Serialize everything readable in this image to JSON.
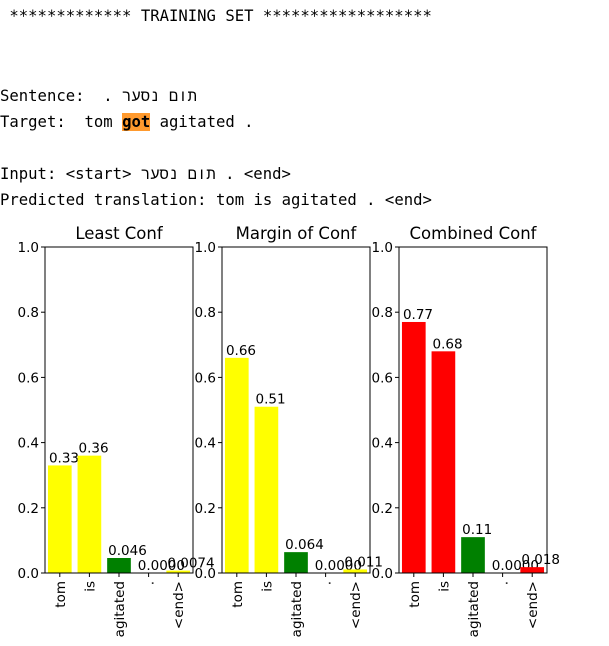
{
  "header": {
    "banner": " ************* TRAINING SET ******************"
  },
  "sentence": {
    "label": "Sentence:",
    "text": "תום נסער ."
  },
  "target": {
    "label": "Target:",
    "before": "tom",
    "highlight": "got",
    "after": "agitated ."
  },
  "input": {
    "label": "Input:",
    "start": "<start>",
    "text": "תום נסער",
    "rest": ". <end>"
  },
  "prediction": {
    "label": "Predicted translation:",
    "text": "tom is agitated . <end>"
  },
  "chart_data": [
    {
      "type": "bar",
      "title": "Least Conf",
      "categories": [
        "tom",
        "is",
        "agitated",
        ".",
        "<end>"
      ],
      "values": [
        0.33,
        0.36,
        0.046,
        0.0,
        0.0074
      ],
      "value_labels": [
        "0.33",
        "0.36",
        "0.046",
        "0.0000",
        "0.0074"
      ],
      "colors": [
        "#ffff00",
        "#ffff00",
        "#008000",
        "#ffff00",
        "#ffff00"
      ],
      "ylim": [
        0,
        1.0
      ],
      "yticks": [
        "0.0",
        "0.2",
        "0.4",
        "0.6",
        "0.8",
        "1.0"
      ]
    },
    {
      "type": "bar",
      "title": "Margin of Conf",
      "categories": [
        "tom",
        "is",
        "agitated",
        ".",
        "<end>"
      ],
      "values": [
        0.66,
        0.51,
        0.064,
        0.0,
        0.011
      ],
      "value_labels": [
        "0.66",
        "0.51",
        "0.064",
        "0.0000",
        "0.011"
      ],
      "colors": [
        "#ffff00",
        "#ffff00",
        "#008000",
        "#ffff00",
        "#ffff00"
      ],
      "ylim": [
        0,
        1.0
      ],
      "yticks": [
        "0.0",
        "0.2",
        "0.4",
        "0.6",
        "0.8",
        "1.0"
      ]
    },
    {
      "type": "bar",
      "title": "Combined Conf",
      "categories": [
        "tom",
        "is",
        "agitated",
        ".",
        "<end>"
      ],
      "values": [
        0.77,
        0.68,
        0.11,
        0.0,
        0.018
      ],
      "value_labels": [
        "0.77",
        "0.68",
        "0.11",
        "0.0000",
        "0.018"
      ],
      "colors": [
        "#ff0000",
        "#ff0000",
        "#008000",
        "#ff0000",
        "#ff0000"
      ],
      "ylim": [
        0,
        1.0
      ],
      "yticks": [
        "0.0",
        "0.2",
        "0.4",
        "0.6",
        "0.8",
        "1.0"
      ]
    }
  ]
}
